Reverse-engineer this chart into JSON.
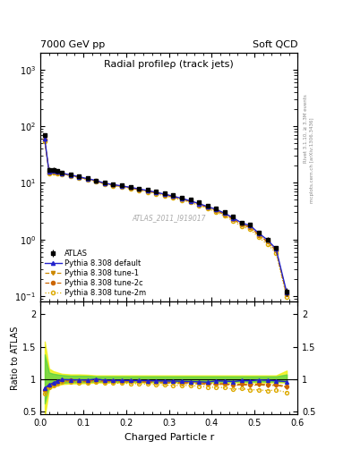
{
  "title_left": "7000 GeV pp",
  "title_right": "Soft QCD",
  "plot_title": "Radial profileρ (track jets)",
  "xlabel": "Charged Particle r",
  "ylabel_ratio": "Ratio to ATLAS",
  "right_label": "Rivet 3.1.10, ≥ 3.3M events",
  "right_label2": "mcplots.cern.ch [arXiv:1306.3436]",
  "watermark": "ATLAS_2011_I919017",
  "legend_entries": [
    "ATLAS",
    "Pythia 8.308 default",
    "Pythia 8.308 tune-1",
    "Pythia 8.308 tune-2c",
    "Pythia 8.308 tune-2m"
  ],
  "r_data": [
    0.01,
    0.02,
    0.03,
    0.04,
    0.05,
    0.07,
    0.09,
    0.11,
    0.13,
    0.15,
    0.17,
    0.19,
    0.21,
    0.23,
    0.25,
    0.27,
    0.29,
    0.31,
    0.33,
    0.35,
    0.37,
    0.39,
    0.41,
    0.43,
    0.45,
    0.47,
    0.49,
    0.51,
    0.53,
    0.55,
    0.575
  ],
  "atlas_y": [
    70,
    17,
    17,
    16,
    15,
    14,
    13,
    12,
    11,
    10,
    9.5,
    9.0,
    8.5,
    8.0,
    7.5,
    7.0,
    6.5,
    6.0,
    5.5,
    5.0,
    4.5,
    4.0,
    3.5,
    3.0,
    2.5,
    2.0,
    1.8,
    1.3,
    1.0,
    0.7,
    0.12
  ],
  "atlas_yerr": [
    5,
    1.5,
    1.5,
    1.2,
    1.0,
    0.8,
    0.7,
    0.6,
    0.5,
    0.5,
    0.4,
    0.4,
    0.3,
    0.3,
    0.3,
    0.3,
    0.3,
    0.3,
    0.3,
    0.3,
    0.2,
    0.2,
    0.2,
    0.2,
    0.2,
    0.15,
    0.15,
    0.1,
    0.1,
    0.07,
    0.02
  ],
  "pythia_default_y": [
    60,
    15.5,
    16,
    15.5,
    14.8,
    13.8,
    12.8,
    11.8,
    11.0,
    9.8,
    9.3,
    8.8,
    8.3,
    7.8,
    7.3,
    6.8,
    6.3,
    5.8,
    5.3,
    4.8,
    4.3,
    3.8,
    3.4,
    2.9,
    2.4,
    1.95,
    1.75,
    1.28,
    0.98,
    0.68,
    0.115
  ],
  "pythia_tune1_y": [
    56,
    15.0,
    15.5,
    15.0,
    14.5,
    13.5,
    12.5,
    11.5,
    10.7,
    9.6,
    9.1,
    8.6,
    8.1,
    7.6,
    7.1,
    6.6,
    6.1,
    5.6,
    5.1,
    4.65,
    4.15,
    3.65,
    3.2,
    2.75,
    2.25,
    1.82,
    1.62,
    1.18,
    0.9,
    0.63,
    0.105
  ],
  "pythia_tune2c_y": [
    58,
    15.2,
    15.8,
    15.2,
    14.7,
    13.7,
    12.6,
    11.6,
    10.8,
    9.7,
    9.2,
    8.7,
    8.2,
    7.7,
    7.2,
    6.7,
    6.2,
    5.7,
    5.2,
    4.72,
    4.22,
    3.72,
    3.25,
    2.78,
    2.28,
    1.84,
    1.64,
    1.2,
    0.91,
    0.64,
    0.106
  ],
  "pythia_tune2m_y": [
    54,
    14.8,
    15.2,
    14.8,
    14.3,
    13.3,
    12.3,
    11.3,
    10.5,
    9.4,
    8.9,
    8.4,
    7.9,
    7.4,
    6.9,
    6.4,
    5.9,
    5.4,
    4.95,
    4.5,
    4.0,
    3.5,
    3.05,
    2.6,
    2.1,
    1.7,
    1.5,
    1.08,
    0.82,
    0.58,
    0.095
  ],
  "ratio_default": [
    0.86,
    0.91,
    0.94,
    0.97,
    0.99,
    0.987,
    0.985,
    0.983,
    1.0,
    0.98,
    0.978,
    0.978,
    0.976,
    0.975,
    0.973,
    0.971,
    0.969,
    0.967,
    0.964,
    0.96,
    0.956,
    0.95,
    0.971,
    0.967,
    0.96,
    0.975,
    0.972,
    0.985,
    0.98,
    0.971,
    0.958
  ],
  "ratio_tune1": [
    0.8,
    0.88,
    0.91,
    0.94,
    0.967,
    0.964,
    0.962,
    0.958,
    0.973,
    0.96,
    0.958,
    0.956,
    0.953,
    0.95,
    0.947,
    0.943,
    0.938,
    0.933,
    0.927,
    0.93,
    0.922,
    0.913,
    0.914,
    0.917,
    0.9,
    0.91,
    0.9,
    0.908,
    0.9,
    0.9,
    0.875
  ],
  "ratio_tune2c": [
    0.83,
    0.895,
    0.93,
    0.95,
    0.98,
    0.979,
    0.969,
    0.967,
    0.982,
    0.97,
    0.968,
    0.967,
    0.965,
    0.963,
    0.96,
    0.957,
    0.954,
    0.95,
    0.945,
    0.944,
    0.938,
    0.93,
    0.929,
    0.927,
    0.912,
    0.92,
    0.911,
    0.923,
    0.91,
    0.914,
    0.883
  ],
  "ratio_tune2m": [
    0.77,
    0.87,
    0.895,
    0.925,
    0.953,
    0.95,
    0.946,
    0.942,
    0.955,
    0.94,
    0.937,
    0.933,
    0.929,
    0.925,
    0.92,
    0.914,
    0.908,
    0.9,
    0.9,
    0.9,
    0.889,
    0.875,
    0.871,
    0.867,
    0.84,
    0.85,
    0.833,
    0.831,
    0.82,
    0.829,
    0.792
  ],
  "band_yellow_lo": [
    0.42,
    0.84,
    0.88,
    0.9,
    0.92,
    0.93,
    0.93,
    0.935,
    0.945,
    0.945,
    0.945,
    0.945,
    0.945,
    0.945,
    0.945,
    0.945,
    0.945,
    0.945,
    0.945,
    0.945,
    0.945,
    0.945,
    0.945,
    0.945,
    0.945,
    0.945,
    0.945,
    0.945,
    0.945,
    0.945,
    0.945
  ],
  "band_yellow_hi": [
    1.58,
    1.16,
    1.12,
    1.1,
    1.08,
    1.07,
    1.07,
    1.065,
    1.055,
    1.055,
    1.055,
    1.055,
    1.055,
    1.055,
    1.055,
    1.055,
    1.055,
    1.055,
    1.055,
    1.055,
    1.055,
    1.055,
    1.055,
    1.055,
    1.055,
    1.055,
    1.055,
    1.055,
    1.055,
    1.055,
    1.13
  ],
  "band_green_lo": [
    0.62,
    0.9,
    0.92,
    0.93,
    0.94,
    0.95,
    0.95,
    0.952,
    0.96,
    0.96,
    0.96,
    0.96,
    0.96,
    0.96,
    0.96,
    0.96,
    0.96,
    0.96,
    0.96,
    0.96,
    0.96,
    0.96,
    0.96,
    0.96,
    0.96,
    0.96,
    0.96,
    0.96,
    0.96,
    0.96,
    0.96
  ],
  "band_green_hi": [
    1.38,
    1.1,
    1.08,
    1.07,
    1.06,
    1.05,
    1.05,
    1.048,
    1.04,
    1.04,
    1.04,
    1.04,
    1.04,
    1.04,
    1.04,
    1.04,
    1.04,
    1.04,
    1.04,
    1.04,
    1.04,
    1.04,
    1.04,
    1.04,
    1.04,
    1.04,
    1.04,
    1.04,
    1.04,
    1.04,
    1.07
  ],
  "color_atlas": "#000000",
  "color_default": "#2222cc",
  "color_tune1": "#cc8800",
  "color_tune2c": "#cc6600",
  "color_tune2m": "#ddaa00",
  "color_band_yellow": "#eeee00",
  "color_band_green": "#44cc44",
  "ylim_main": [
    0.08,
    2000
  ],
  "ylim_ratio": [
    0.45,
    2.2
  ],
  "xlim": [
    0.0,
    0.6
  ]
}
